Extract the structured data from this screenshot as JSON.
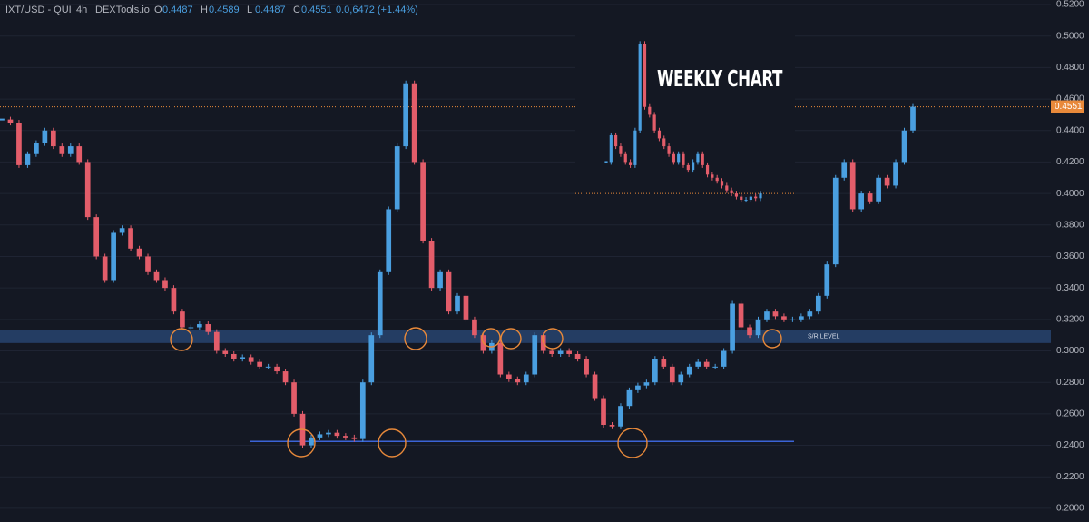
{
  "chart_data": {
    "type": "candlestick",
    "header": {
      "symbol": "IXT/USD - QUI",
      "interval": "4h",
      "source": "DEXTools.io",
      "ohlc": [
        {
          "key": "O",
          "text": "0.4487"
        },
        {
          "key": "H",
          "text": "0.4589"
        },
        {
          "key": "L",
          "text": "0.4487"
        },
        {
          "key": "C",
          "text": "0.4551"
        }
      ],
      "change": "0.0,6472 (+1.44%)"
    },
    "ylim": [
      0.1913,
      0.5229
    ],
    "yticks": [
      {
        "value": 0.2,
        "label": "0.2000"
      },
      {
        "value": 0.22,
        "label": "0.2200"
      },
      {
        "value": 0.24,
        "label": "0.2400"
      },
      {
        "value": 0.26,
        "label": "0.2600"
      },
      {
        "value": 0.28,
        "label": "0.2800"
      },
      {
        "value": 0.3,
        "label": "0.3000"
      },
      {
        "value": 0.32,
        "label": "0.3200"
      },
      {
        "value": 0.34,
        "label": "0.3400"
      },
      {
        "value": 0.36,
        "label": "0.3600"
      },
      {
        "value": 0.38,
        "label": "0.3800"
      },
      {
        "value": 0.4,
        "label": "0.4000"
      },
      {
        "value": 0.42,
        "label": "0.4200"
      },
      {
        "value": 0.44,
        "label": "0.4400"
      },
      {
        "value": 0.46,
        "label": "0.4600"
      },
      {
        "value": 0.48,
        "label": "0.4800"
      },
      {
        "value": 0.5,
        "label": "0.5000"
      },
      {
        "value": 0.52,
        "label": "0.5200"
      }
    ],
    "grid": true,
    "up_color": "#4a9fe0",
    "down_color": "#e35d6a",
    "values": [
      0.447,
      0.445,
      0.418,
      0.425,
      0.432,
      0.44,
      0.43,
      0.425,
      0.43,
      0.42,
      0.385,
      0.36,
      0.345,
      0.375,
      0.378,
      0.365,
      0.36,
      0.35,
      0.345,
      0.34,
      0.325,
      0.315,
      0.315,
      0.317,
      0.312,
      0.3,
      0.298,
      0.295,
      0.296,
      0.293,
      0.29,
      0.29,
      0.287,
      0.28,
      0.26,
      0.24,
      0.245,
      0.247,
      0.248,
      0.246,
      0.245,
      0.244,
      0.28,
      0.31,
      0.35,
      0.39,
      0.43,
      0.47,
      0.42,
      0.37,
      0.34,
      0.35,
      0.325,
      0.335,
      0.32,
      0.31,
      0.3,
      0.305,
      0.285,
      0.282,
      0.28,
      0.285,
      0.31,
      0.3,
      0.298,
      0.3,
      0.298,
      0.295,
      0.285,
      0.27,
      0.253,
      0.252,
      0.265,
      0.275,
      0.278,
      0.28,
      0.295,
      0.29,
      0.28,
      0.285,
      0.29,
      0.293,
      0.29,
      0.29,
      0.3,
      0.33,
      0.315,
      0.31,
      0.32,
      0.325,
      0.322,
      0.32,
      0.32,
      0.322,
      0.325,
      0.335,
      0.355,
      0.41,
      0.42,
      0.39,
      0.4,
      0.395,
      0.41,
      0.405,
      0.42,
      0.44,
      0.4551
    ],
    "last_price": {
      "value": 0.4551,
      "label": "0.4551"
    },
    "support_level": 0.2425,
    "sr_band": [
      0.305,
      0.313
    ],
    "sr_label": "S/R LEVEL",
    "inset": {
      "title": "WEEKLY CHART",
      "level": 0.4,
      "values": [
        0.42,
        0.437,
        0.43,
        0.425,
        0.42,
        0.418,
        0.44,
        0.495,
        0.455,
        0.45,
        0.44,
        0.435,
        0.43,
        0.425,
        0.42,
        0.425,
        0.418,
        0.415,
        0.42,
        0.425,
        0.418,
        0.412,
        0.41,
        0.408,
        0.405,
        0.402,
        0.4,
        0.398,
        0.396,
        0.396,
        0.398,
        0.397,
        0.4
      ]
    }
  }
}
